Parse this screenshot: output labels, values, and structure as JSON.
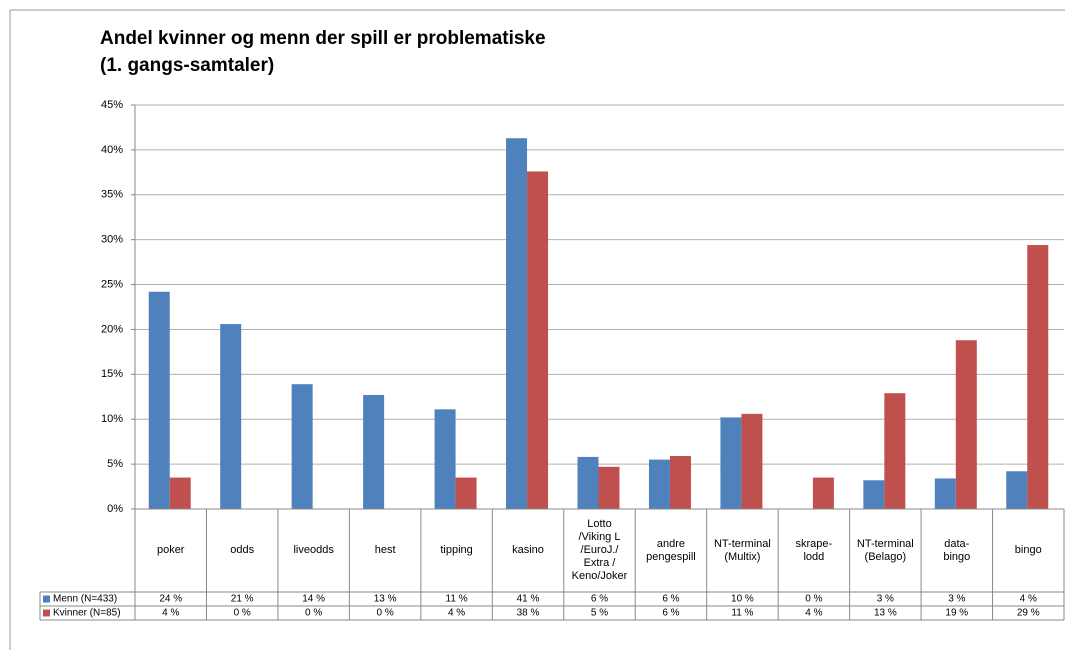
{
  "chart_data": {
    "type": "bar",
    "title": "Andel kvinner og menn der spill er problematiske",
    "subtitle": "(1. gangs-samtaler)",
    "categories": [
      "poker",
      "odds",
      "liveodds",
      "hest",
      "tipping",
      "kasino",
      "Lotto\n/Viking L\n/EuroJ./\nExtra /\nKeno/Joker",
      "andre\npengespill",
      "NT-terminal\n(Multix)",
      "skrape-\nlodd",
      "NT-terminal\n(Belago)",
      "data-\nbingo",
      "bingo"
    ],
    "series": [
      {
        "name": "Menn (N=433)",
        "color": "#4f81bd",
        "values": [
          24.2,
          20.6,
          13.9,
          12.7,
          11.1,
          41.3,
          5.8,
          5.5,
          10.2,
          0,
          3.2,
          3.4,
          4.2
        ],
        "value_labels": [
          "24 %",
          "21 %",
          "14 %",
          "13 %",
          "11 %",
          "41 %",
          "6 %",
          "6 %",
          "10 %",
          "0 %",
          "3 %",
          "3 %",
          "4 %"
        ]
      },
      {
        "name": "Kvinner (N=85)",
        "color": "#c0504d",
        "values": [
          3.5,
          0,
          0,
          0,
          3.5,
          37.6,
          4.7,
          5.9,
          10.6,
          3.5,
          12.9,
          18.8,
          29.4
        ],
        "value_labels": [
          "4 %",
          "0 %",
          "0 %",
          "0 %",
          "4 %",
          "38 %",
          "5 %",
          "6 %",
          "11 %",
          "4 %",
          "13 %",
          "19 %",
          "29 %"
        ]
      }
    ],
    "ylim": [
      0,
      45
    ],
    "yticks": [
      {
        "value": 0,
        "label": "0%"
      },
      {
        "value": 5,
        "label": "5%"
      },
      {
        "value": 10,
        "label": "10%"
      },
      {
        "value": 15,
        "label": "15%"
      },
      {
        "value": 20,
        "label": "20%"
      },
      {
        "value": 25,
        "label": "25%"
      },
      {
        "value": 30,
        "label": "30%"
      },
      {
        "value": 35,
        "label": "35%"
      },
      {
        "value": 40,
        "label": "40%"
      },
      {
        "value": 45,
        "label": "45%"
      }
    ],
    "grid": true
  }
}
